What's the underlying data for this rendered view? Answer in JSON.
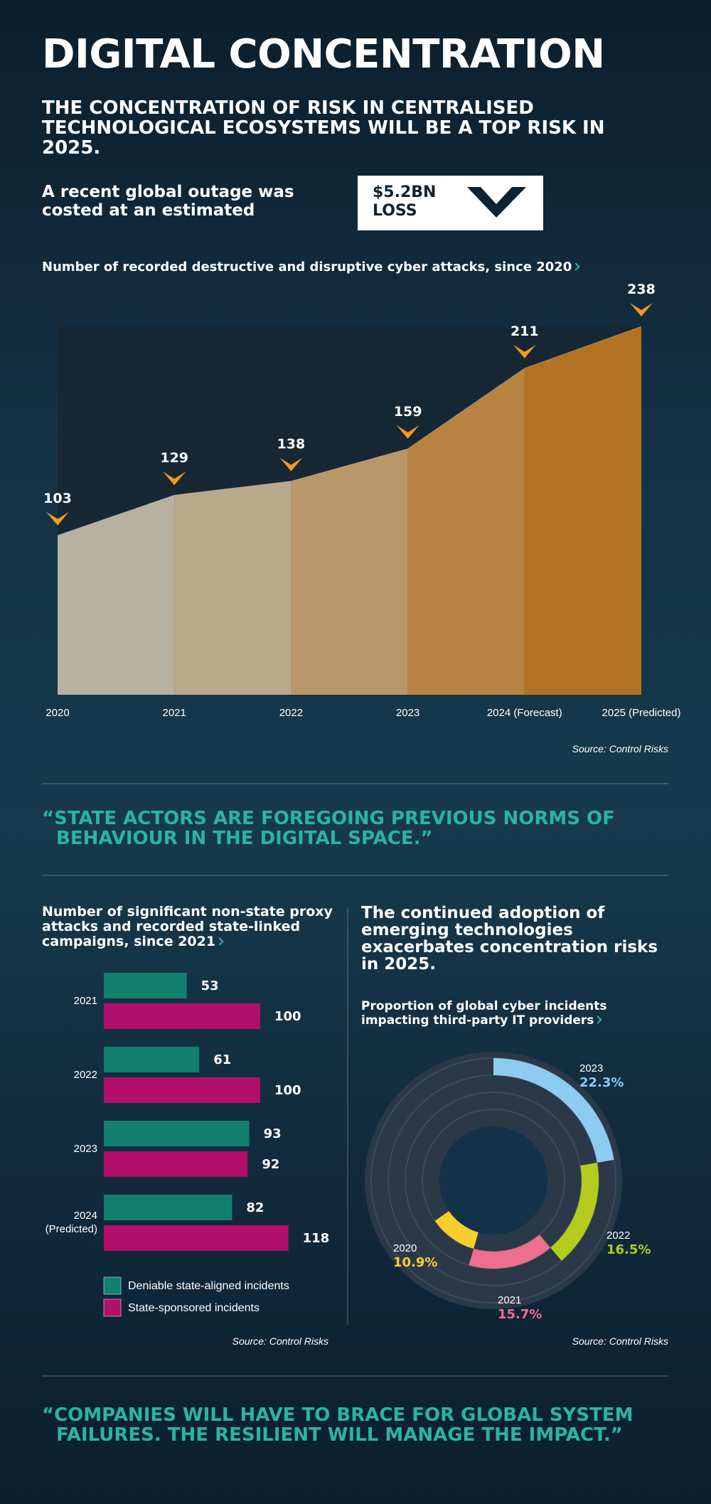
{
  "header": {
    "title": "DIGITAL CONCENTRATION",
    "subtitle": "THE CONCENTRATION OF RISK IN CENTRALISED TECHNOLOGICAL ECOSYSTEMS WILL BE A TOP RISK IN 2025.",
    "outage_text": "A recent global outage was costed at an estimated",
    "loss_amount": "$5.2BN",
    "loss_label": "LOSS"
  },
  "chart_data": [
    {
      "type": "area",
      "title": "Number of recorded destructive and disruptive cyber attacks, since 2020",
      "categories": [
        "2020",
        "2021",
        "2022",
        "2023",
        "2024 (Forecast)",
        "2025 (Predicted)"
      ],
      "values": [
        103,
        129,
        138,
        159,
        211,
        238
      ],
      "ylim": [
        0,
        238
      ],
      "band_colors": [
        "#c6bdab",
        "#c9b391",
        "#c9a16c",
        "#c58b43",
        "#c27a22"
      ],
      "marker_color": "#f29a1f",
      "source": "Source: Control Risks"
    },
    {
      "type": "hbar",
      "title": "Number of significant non-state proxy attacks and recorded state-linked campaigns, since 2021",
      "categories": [
        "2021",
        "2022",
        "2023",
        "2024 (Predicted)"
      ],
      "series": [
        {
          "name": "Deniable state-aligned incidents",
          "color": "#13806f",
          "values": [
            53,
            61,
            93,
            82
          ]
        },
        {
          "name": "State-sponsored incidents",
          "color": "#b20f6a",
          "values": [
            100,
            100,
            92,
            118
          ]
        }
      ],
      "xlim": [
        0,
        130
      ],
      "source": "Source: Control Risks"
    },
    {
      "type": "donut",
      "heading": "The continued adoption of emerging technologies exacerbates concentration risks in 2025.",
      "title": "Proportion of global cyber incidents impacting third-party IT providers",
      "categories": [
        "2023",
        "2022",
        "2021",
        "2020"
      ],
      "values": [
        22.3,
        16.5,
        15.7,
        10.9
      ],
      "value_labels": [
        "22.3%",
        "16.5%",
        "15.7%",
        "10.9%"
      ],
      "colors": [
        "#8dcbf0",
        "#b4cc1c",
        "#ec6f8b",
        "#f7cf2c"
      ],
      "source": "Source: Control Risks"
    }
  ],
  "quotes": [
    "“STATE ACTORS ARE FOREGOING PREVIOUS NORMS OF BEHAVIOUR IN THE DIGITAL SPACE.”",
    "“COMPANIES WILL HAVE TO BRACE FOR GLOBAL SYSTEM FAILURES. THE RESILIENT WILL MANAGE THE IMPACT.”"
  ]
}
